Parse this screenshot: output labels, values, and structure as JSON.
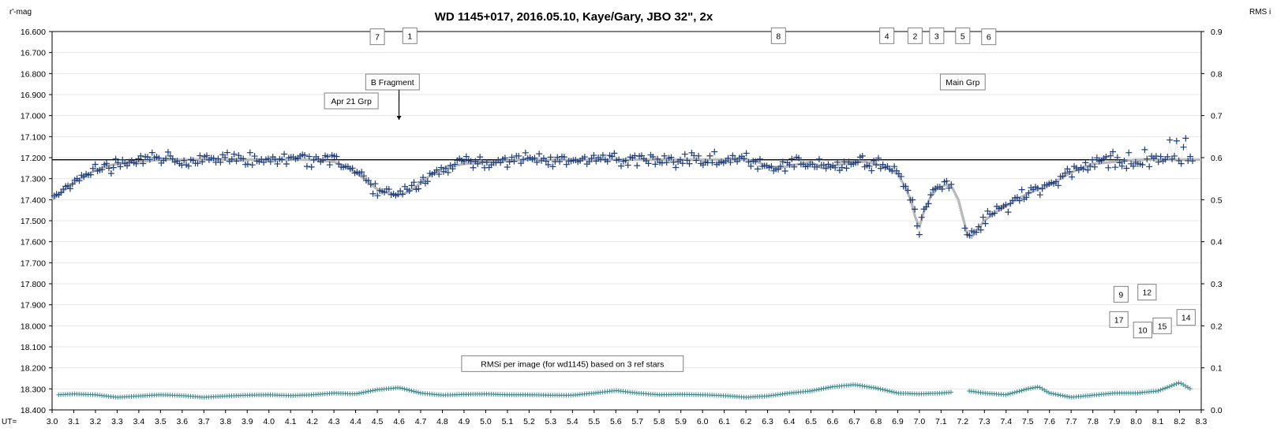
{
  "chart_data": {
    "type": "scatter",
    "title": "WD 1145+017,  2016.05.10,  Kaye/Gary,  JBO 32\", 2x",
    "ylabel": "r'-mag",
    "y2label": "RMS i",
    "xlabel": "UT=",
    "xlim": [
      3.0,
      8.3
    ],
    "ylim": [
      16.6,
      18.4
    ],
    "y_inverted": true,
    "y2lim": [
      0.0,
      0.9
    ],
    "grid": "horizontal",
    "x_ticks": [
      "3.0",
      "3.1",
      "3.2",
      "3.3",
      "3.4",
      "3.5",
      "3.6",
      "3.7",
      "3.8",
      "3.9",
      "4.0",
      "4.1",
      "4.2",
      "4.3",
      "4.4",
      "4.5",
      "4.6",
      "4.7",
      "4.8",
      "4.9",
      "5.0",
      "5.1",
      "5.2",
      "5.3",
      "5.4",
      "5.5",
      "5.6",
      "5.7",
      "5.8",
      "5.9",
      "6.0",
      "6.1",
      "6.2",
      "6.3",
      "6.4",
      "6.5",
      "6.6",
      "6.7",
      "6.8",
      "6.9",
      "7.0",
      "7.1",
      "7.2",
      "7.3",
      "7.4",
      "7.5",
      "7.6",
      "7.7",
      "7.8",
      "7.9",
      "8.0",
      "8.1",
      "8.2",
      "8.3"
    ],
    "y_ticks": [
      "16.600",
      "16.700",
      "16.800",
      "16.900",
      "17.000",
      "17.100",
      "17.200",
      "17.300",
      "17.400",
      "17.500",
      "17.600",
      "17.700",
      "17.800",
      "17.900",
      "18.000",
      "18.100",
      "18.200",
      "18.300",
      "18.400"
    ],
    "y2_ticks": [
      "0.9",
      "0.8",
      "0.7",
      "0.6",
      "0.5",
      "0.4",
      "0.3",
      "0.2",
      "0.1",
      "0.0"
    ],
    "reference_line": 17.21,
    "colors": {
      "points": "#1f3e7a",
      "model": "#b9b9b9",
      "rms": "#3a8a8f"
    },
    "series": [
      {
        "kind": "model",
        "x": [
          3.0,
          3.05,
          3.1,
          3.15,
          3.2,
          3.25,
          3.3,
          3.4,
          3.5,
          3.6,
          3.7,
          3.8,
          3.9,
          4.0,
          4.1,
          4.2,
          4.3,
          4.35,
          4.4,
          4.45,
          4.5,
          4.55,
          4.6,
          4.65,
          4.7,
          4.75,
          4.8,
          4.9,
          5.0,
          5.2,
          5.4,
          5.6,
          5.8,
          6.0,
          6.2,
          6.25,
          6.3,
          6.35,
          6.4,
          6.5,
          6.55,
          6.6,
          6.65,
          6.7,
          6.75,
          6.8,
          6.85,
          6.9,
          6.93,
          6.96,
          6.98,
          7.0,
          7.02,
          7.05,
          7.08,
          7.12,
          7.15,
          7.18,
          7.2,
          7.22,
          7.24,
          7.26,
          7.3,
          7.35,
          7.4,
          7.45,
          7.5,
          7.55,
          7.6,
          7.65,
          7.7,
          7.75,
          7.8,
          7.9,
          8.0,
          8.1,
          8.2,
          8.3
        ],
        "y": [
          17.4,
          17.36,
          17.32,
          17.29,
          17.26,
          17.24,
          17.23,
          17.22,
          17.21,
          17.21,
          17.21,
          17.21,
          17.21,
          17.21,
          17.21,
          17.21,
          17.22,
          17.24,
          17.27,
          17.31,
          17.35,
          17.37,
          17.38,
          17.36,
          17.32,
          17.28,
          17.25,
          17.23,
          17.22,
          17.21,
          17.21,
          17.21,
          17.21,
          17.21,
          17.21,
          17.22,
          17.24,
          17.25,
          17.24,
          17.22,
          17.25,
          17.24,
          17.23,
          17.22,
          17.22,
          17.23,
          17.25,
          17.28,
          17.33,
          17.4,
          17.48,
          17.53,
          17.46,
          17.39,
          17.35,
          17.33,
          17.34,
          17.4,
          17.48,
          17.56,
          17.58,
          17.55,
          17.5,
          17.46,
          17.43,
          17.4,
          17.37,
          17.35,
          17.33,
          17.3,
          17.27,
          17.25,
          17.23,
          17.22,
          17.21,
          17.21,
          17.21,
          17.21
        ]
      },
      {
        "kind": "rms",
        "x": [
          3.03,
          3.1,
          3.2,
          3.3,
          3.4,
          3.5,
          3.6,
          3.7,
          3.8,
          3.9,
          4.0,
          4.1,
          4.2,
          4.3,
          4.4,
          4.5,
          4.6,
          4.7,
          4.8,
          4.9,
          5.0,
          5.1,
          5.2,
          5.3,
          5.4,
          5.5,
          5.6,
          5.7,
          5.8,
          5.9,
          6.0,
          6.1,
          6.2,
          6.3,
          6.4,
          6.5,
          6.6,
          6.7,
          6.8,
          6.9,
          7.0,
          7.1,
          7.15,
          7.23,
          7.3,
          7.4,
          7.5,
          7.55,
          7.6,
          7.7,
          7.8,
          7.9,
          8.0,
          8.1,
          8.2,
          8.25
        ],
        "y": [
          0.036,
          0.038,
          0.036,
          0.03,
          0.033,
          0.036,
          0.034,
          0.03,
          0.033,
          0.035,
          0.036,
          0.034,
          0.036,
          0.04,
          0.038,
          0.048,
          0.053,
          0.04,
          0.035,
          0.037,
          0.038,
          0.036,
          0.036,
          0.035,
          0.035,
          0.04,
          0.046,
          0.04,
          0.036,
          0.037,
          0.036,
          0.034,
          0.03,
          0.033,
          0.04,
          0.045,
          0.055,
          0.06,
          0.052,
          0.04,
          0.038,
          0.04,
          0.042,
          0.045,
          0.04,
          0.036,
          0.05,
          0.055,
          0.04,
          0.03,
          0.035,
          0.04,
          0.04,
          0.045,
          0.065,
          0.05
        ]
      }
    ],
    "annotations": [
      {
        "text": "7",
        "x": 4.5,
        "y": 16.625
      },
      {
        "text": "1",
        "x": 4.65,
        "y": 16.62
      },
      {
        "text": "8",
        "x": 6.35,
        "y": 16.62
      },
      {
        "text": "4",
        "x": 6.85,
        "y": 16.62
      },
      {
        "text": "2",
        "x": 6.98,
        "y": 16.62
      },
      {
        "text": "3",
        "x": 7.08,
        "y": 16.62
      },
      {
        "text": "5",
        "x": 7.2,
        "y": 16.62
      },
      {
        "text": "6",
        "x": 7.32,
        "y": 16.625
      },
      {
        "text": "9",
        "x": 7.93,
        "y": 17.85
      },
      {
        "text": "12",
        "x": 8.05,
        "y": 17.84
      },
      {
        "text": "17",
        "x": 7.92,
        "y": 17.97
      },
      {
        "text": "14",
        "x": 8.23,
        "y": 17.96
      },
      {
        "text": "10",
        "x": 8.03,
        "y": 18.02
      },
      {
        "text": "15",
        "x": 8.12,
        "y": 18.0
      },
      {
        "text": "B Fragment",
        "x": 4.57,
        "y": 16.84
      },
      {
        "text": "Apr 21 Grp",
        "x": 4.38,
        "y": 16.93
      },
      {
        "text": "Main Grp",
        "x": 7.2,
        "y": 16.84
      },
      {
        "text": "RMSi per image (for wd1145) based on 3 ref stars",
        "x": 5.4,
        "y": 18.18
      }
    ]
  }
}
